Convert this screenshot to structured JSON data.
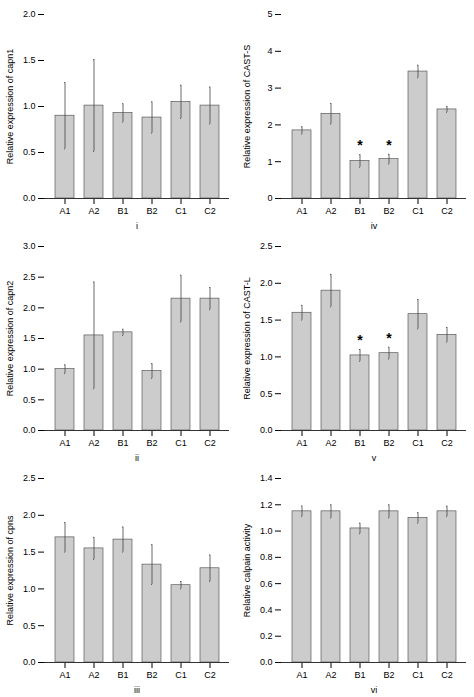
{
  "chart_data": [
    {
      "type": "bar",
      "xlabel": "i",
      "ylabel": "Relative expression of capn1",
      "categories": [
        "A1",
        "A2",
        "B1",
        "B2",
        "C1",
        "C2"
      ],
      "values": [
        0.9,
        1.01,
        0.93,
        0.88,
        1.05,
        1.01
      ],
      "errors": [
        0.36,
        0.5,
        0.1,
        0.17,
        0.18,
        0.2
      ],
      "ylim": [
        0,
        2.0
      ],
      "yticks": [
        {
          "value": 0.0,
          "label": "0.0"
        },
        0.5,
        {
          "value": 1.0,
          "label": "1.0"
        },
        1.5,
        {
          "value": 2.0,
          "label": "2.0"
        }
      ],
      "annotations": [],
      "color": "#cccccc",
      "grid": false
    },
    {
      "type": "bar",
      "xlabel": "iv",
      "ylabel": "Relative expression of CAST-S",
      "categories": [
        "A1",
        "A2",
        "B1",
        "B2",
        "C1",
        "C2"
      ],
      "values": [
        1.85,
        2.3,
        1.02,
        1.07,
        3.45,
        2.42
      ],
      "errors": [
        0.1,
        0.28,
        0.17,
        0.13,
        0.17,
        0.08
      ],
      "ylim": [
        0,
        5.0
      ],
      "yticks": [
        0,
        1,
        2,
        3,
        4,
        5
      ],
      "annotations": [
        {
          "category": "B1",
          "text": "*"
        },
        {
          "category": "B2",
          "text": "*"
        }
      ],
      "color": "#cccccc",
      "grid": false
    },
    {
      "type": "bar",
      "xlabel": "ii",
      "ylabel": "Relative expression of capn2",
      "categories": [
        "A1",
        "A2",
        "B1",
        "B2",
        "C1",
        "C2"
      ],
      "values": [
        1.0,
        1.55,
        1.6,
        0.97,
        2.15,
        2.15
      ],
      "errors": [
        0.07,
        0.87,
        0.05,
        0.12,
        0.38,
        0.18
      ],
      "ylim": [
        0,
        3.0
      ],
      "yticks": [
        {
          "value": 0.0,
          "label": "0.0"
        },
        0.5,
        {
          "value": 1.0,
          "label": "1.0"
        },
        1.5,
        {
          "value": 2.0,
          "label": "2.0"
        },
        2.5,
        {
          "value": 3.0,
          "label": "3.0"
        }
      ],
      "annotations": [],
      "color": "#cccccc",
      "grid": false
    },
    {
      "type": "bar",
      "xlabel": "v",
      "ylabel": "Relative expression of CAST-L",
      "categories": [
        "A1",
        "A2",
        "B1",
        "B2",
        "C1",
        "C2"
      ],
      "values": [
        1.6,
        1.9,
        1.02,
        1.05,
        1.58,
        1.3
      ],
      "errors": [
        0.1,
        0.22,
        0.08,
        0.08,
        0.2,
        0.1
      ],
      "ylim": [
        0,
        2.5
      ],
      "yticks": [
        {
          "value": 0.0,
          "label": "0.0"
        },
        0.5,
        {
          "value": 1.0,
          "label": "1.0"
        },
        1.5,
        {
          "value": 2.0,
          "label": "2.0"
        },
        2.5
      ],
      "annotations": [
        {
          "category": "B1",
          "text": "*"
        },
        {
          "category": "B2",
          "text": "*"
        }
      ],
      "color": "#cccccc",
      "grid": false
    },
    {
      "type": "bar",
      "xlabel": "iii",
      "ylabel": "Relative expression of cpns",
      "categories": [
        "A1",
        "A2",
        "B1",
        "B2",
        "C1",
        "C2"
      ],
      "values": [
        1.7,
        1.55,
        1.67,
        1.33,
        1.05,
        1.28
      ],
      "errors": [
        0.2,
        0.15,
        0.17,
        0.27,
        0.05,
        0.18
      ],
      "ylim": [
        0,
        2.5
      ],
      "yticks": [
        {
          "value": 0.0,
          "label": "0.0"
        },
        0.5,
        {
          "value": 1.0,
          "label": "1.0"
        },
        1.5,
        {
          "value": 2.0,
          "label": "2.0"
        },
        2.5
      ],
      "annotations": [],
      "color": "#cccccc",
      "grid": false
    },
    {
      "type": "bar",
      "xlabel": "vi",
      "ylabel": "Relative calpain activity",
      "categories": [
        "A1",
        "A2",
        "B1",
        "B2",
        "C1",
        "C2"
      ],
      "values": [
        1.15,
        1.15,
        1.02,
        1.15,
        1.1,
        1.15
      ],
      "errors": [
        0.04,
        0.05,
        0.04,
        0.05,
        0.04,
        0.04
      ],
      "ylim": [
        0.0,
        1.4
      ],
      "yticks": [
        {
          "value": 0.0,
          "label": "0.0"
        },
        0.2,
        0.4,
        0.6,
        0.8,
        {
          "value": 1.0,
          "label": "1.0"
        },
        1.2,
        1.4
      ],
      "annotations": [],
      "color": "#cccccc",
      "grid": false
    }
  ]
}
